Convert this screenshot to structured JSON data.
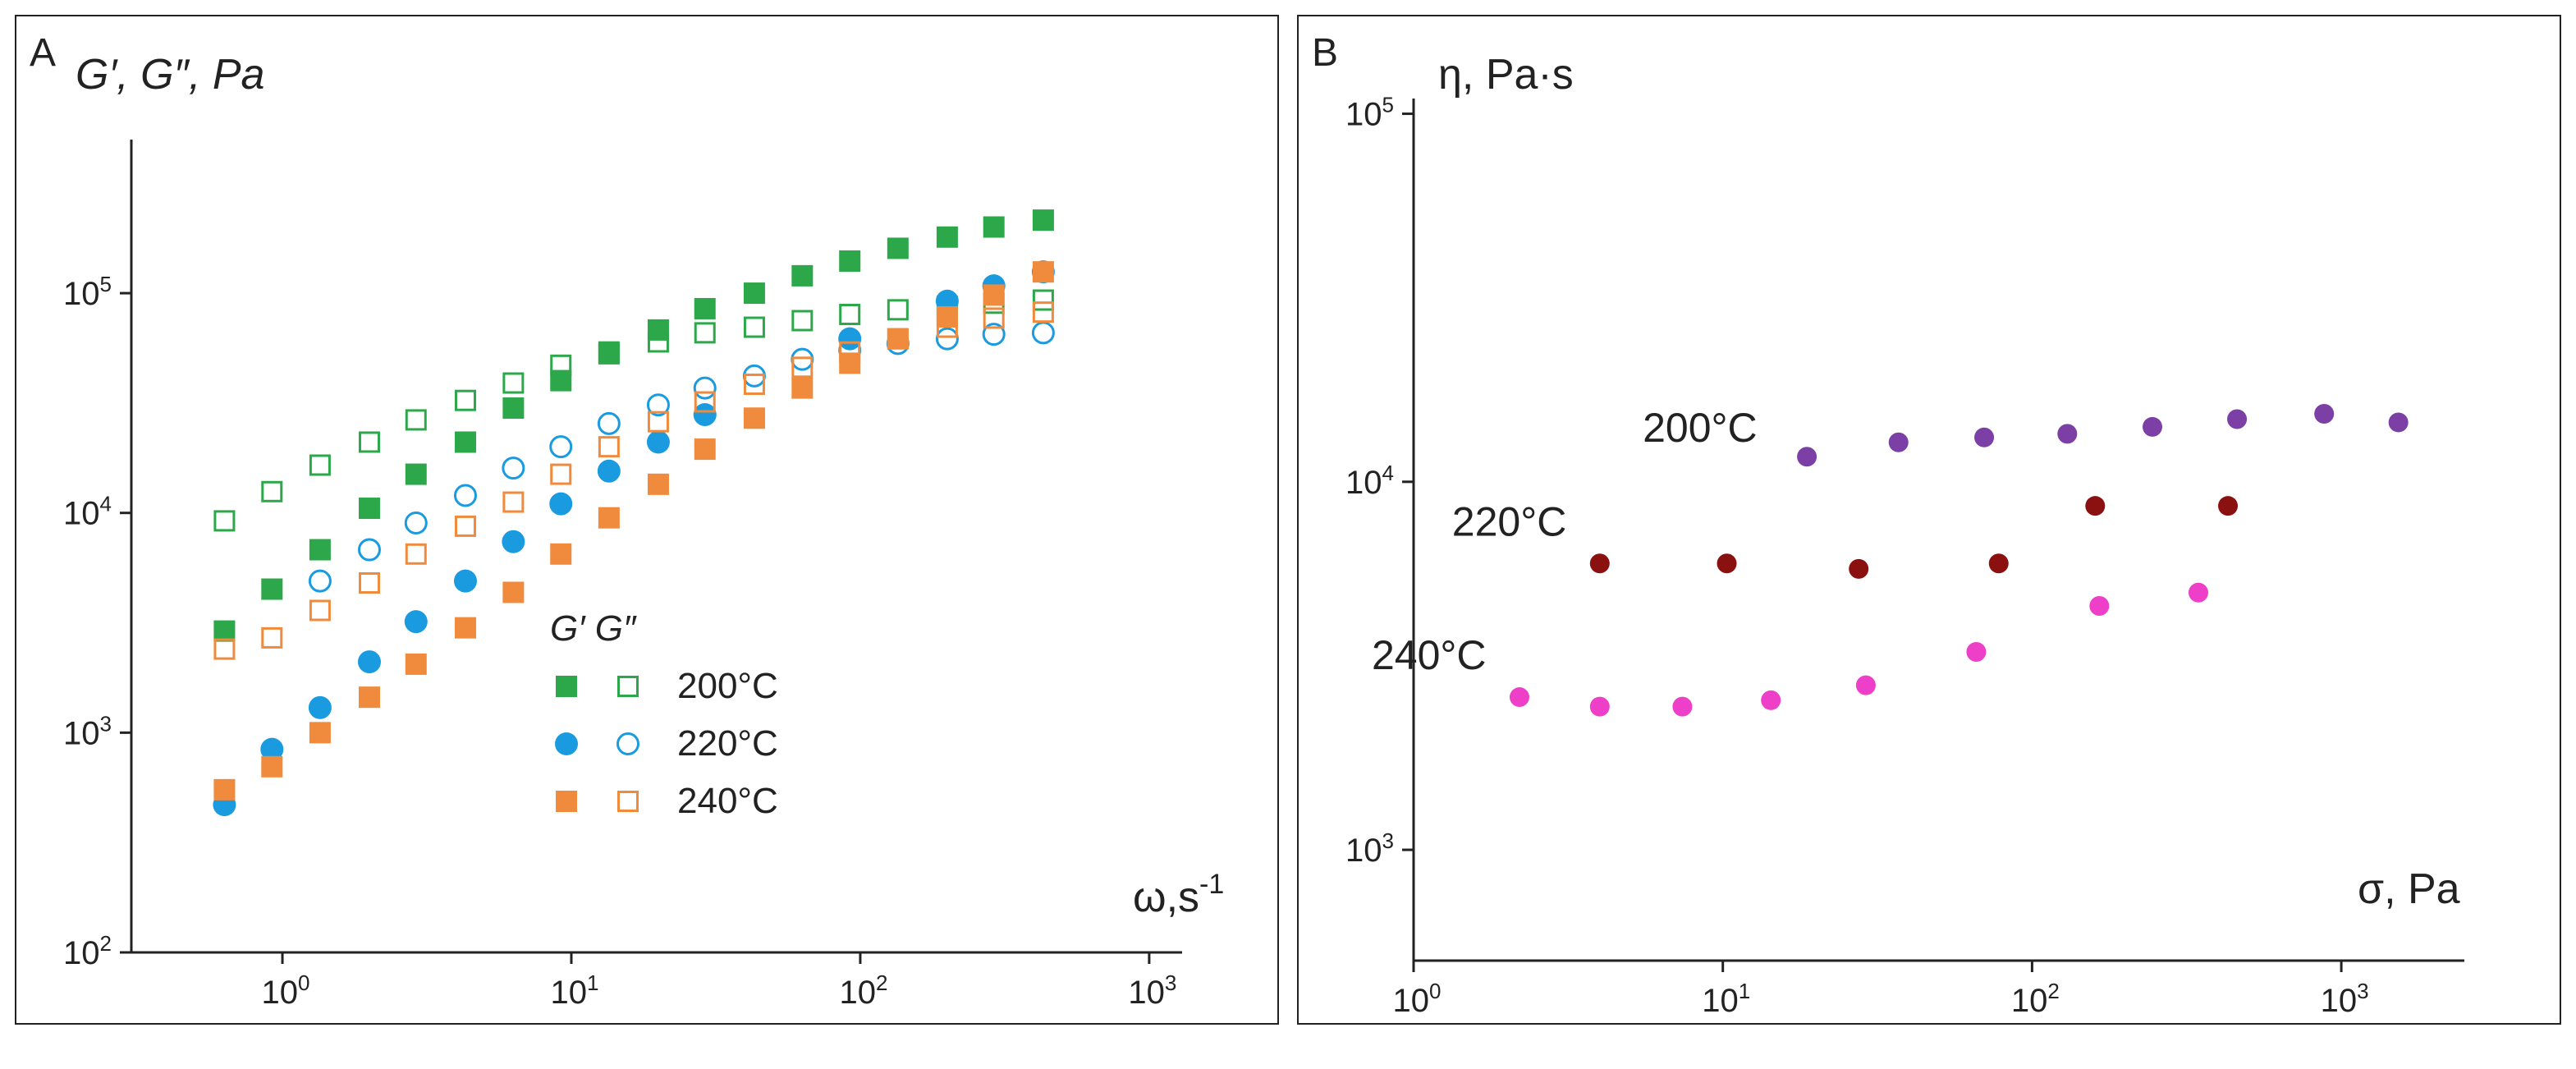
{
  "chart_data": [
    {
      "panel": "A",
      "type": "scatter",
      "title": "",
      "ylabel": "G′, G″, Pa",
      "xlabel": "ω,s-1",
      "x_scale": "log",
      "y_scale": "log",
      "xlim": [
        0.3,
        1300
      ],
      "ylim": [
        100,
        500000
      ],
      "x_ticks": [
        {
          "base": "10",
          "exp": "0",
          "value": 1
        },
        {
          "base": "10",
          "exp": "1",
          "value": 10
        },
        {
          "base": "10",
          "exp": "2",
          "value": 100
        },
        {
          "base": "10",
          "exp": "3",
          "value": 1000
        }
      ],
      "y_ticks": [
        {
          "base": "10",
          "exp": "2",
          "value": 100
        },
        {
          "base": "10",
          "exp": "3",
          "value": 1000
        },
        {
          "base": "10",
          "exp": "4",
          "value": 10000
        },
        {
          "base": "10",
          "exp": "5",
          "value": 100000
        }
      ],
      "legend": {
        "header": "G′ G″",
        "placement": "center-right",
        "entries": [
          "200°C",
          "220°C",
          "240°C"
        ]
      },
      "series": [
        {
          "name": "200°C",
          "modulus": "G′",
          "marker": "square-filled",
          "color": "#2ca84a",
          "x": [
            0.63,
            0.92,
            1.35,
            2.0,
            2.9,
            4.3,
            6.3,
            9.2,
            13.5,
            20,
            29,
            43,
            63,
            92,
            135,
            200,
            290,
            430
          ],
          "y": [
            2900,
            4500,
            6800,
            10500,
            15000,
            21000,
            30000,
            40000,
            53000,
            68000,
            85000,
            100000,
            120000,
            140000,
            160000,
            180000,
            200000,
            215000
          ]
        },
        {
          "name": "200°C",
          "modulus": "G″",
          "marker": "square-open",
          "color": "#2ca84a",
          "x": [
            0.63,
            0.92,
            1.35,
            2.0,
            2.9,
            4.3,
            6.3,
            9.2,
            13.5,
            20,
            29,
            43,
            63,
            92,
            135,
            200,
            290,
            430
          ],
          "y": [
            9200,
            12500,
            16500,
            21000,
            26500,
            32500,
            39000,
            47000,
            54000,
            60000,
            66000,
            70000,
            75000,
            80000,
            84000,
            87000,
            90000,
            93000
          ]
        },
        {
          "name": "220°C",
          "modulus": "G′",
          "marker": "circle-filled",
          "color": "#1a9be0",
          "x": [
            0.63,
            0.92,
            1.35,
            2.0,
            2.9,
            4.3,
            6.3,
            9.2,
            13.5,
            20,
            29,
            92,
            200,
            290,
            430
          ],
          "y": [
            470,
            840,
            1300,
            2100,
            3200,
            4900,
            7400,
            11000,
            15500,
            21000,
            28000,
            62000,
            92000,
            108000,
            125000
          ]
        },
        {
          "name": "220°C",
          "modulus": "G″",
          "marker": "circle-open",
          "color": "#1a9be0",
          "x": [
            1.35,
            2.0,
            2.9,
            4.3,
            6.3,
            9.2,
            13.5,
            20,
            29,
            43,
            63,
            92,
            135,
            200,
            290,
            430
          ],
          "y": [
            4900,
            6800,
            9000,
            12000,
            16000,
            20000,
            25500,
            31000,
            37000,
            42000,
            50000,
            55000,
            59000,
            62000,
            65000,
            66000
          ]
        },
        {
          "name": "240°C",
          "modulus": "G′",
          "marker": "square-filled",
          "color": "#f08a3c",
          "x": [
            0.63,
            0.92,
            1.35,
            2.0,
            2.9,
            4.3,
            6.3,
            9.2,
            13.5,
            20,
            29,
            43,
            63,
            92,
            135,
            200,
            290,
            430
          ],
          "y": [
            550,
            700,
            1000,
            1450,
            2050,
            3000,
            4350,
            6500,
            9500,
            13500,
            19500,
            27000,
            37000,
            48000,
            62000,
            78000,
            98000,
            125000
          ]
        },
        {
          "name": "240°C",
          "modulus": "G″",
          "marker": "square-open",
          "color": "#f08a3c",
          "x": [
            0.63,
            0.92,
            1.35,
            2.0,
            2.9,
            4.3,
            6.3,
            9.2,
            13.5,
            20,
            29,
            43,
            63,
            92,
            135,
            200,
            290,
            430
          ],
          "y": [
            2400,
            2700,
            3600,
            4800,
            6500,
            8700,
            11200,
            15000,
            20000,
            26000,
            32000,
            38500,
            46000,
            54000,
            62000,
            70000,
            77000,
            82000
          ]
        }
      ]
    },
    {
      "panel": "B",
      "type": "scatter",
      "title": "",
      "ylabel": "η, Pa·s",
      "xlabel": "σ, Pa",
      "x_scale": "log",
      "y_scale": "log",
      "xlim": [
        1,
        2500
      ],
      "ylim": [
        500,
        110000
      ],
      "x_ticks": [
        {
          "base": "10",
          "exp": "0",
          "value": 1
        },
        {
          "base": "10",
          "exp": "1",
          "value": 10
        },
        {
          "base": "10",
          "exp": "2",
          "value": 100
        },
        {
          "base": "10",
          "exp": "3",
          "value": 1000
        }
      ],
      "y_ticks": [
        {
          "base": "10",
          "exp": "3",
          "value": 1000
        },
        {
          "base": "10",
          "exp": "4",
          "value": 10000
        },
        {
          "base": "10",
          "exp": "5",
          "value": 100000
        }
      ],
      "series": [
        {
          "name": "200°C",
          "color": "#7b3fa6",
          "x": [
            18.7,
            37,
            70,
            130,
            245,
            460,
            880,
            1530
          ],
          "y": [
            11700,
            12800,
            13200,
            13500,
            14100,
            14800,
            15300,
            14500
          ]
        },
        {
          "name": "220°C",
          "color": "#8b1111",
          "x": [
            4,
            10.3,
            27.5,
            78,
            160,
            430
          ],
          "y": [
            6000,
            6000,
            5800,
            6000,
            8600,
            8600
          ]
        },
        {
          "name": "240°C",
          "color": "#ee3fc8",
          "x": [
            2.2,
            4,
            7.4,
            14.3,
            29,
            66,
            165,
            345
          ],
          "y": [
            2600,
            2450,
            2450,
            2550,
            2800,
            3450,
            4600,
            5000
          ]
        }
      ]
    }
  ]
}
